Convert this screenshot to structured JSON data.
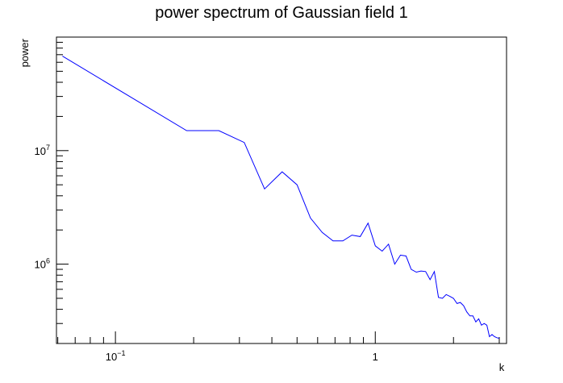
{
  "chart_data": {
    "type": "line",
    "title": "power spectrum of Gaussian field 1",
    "xlabel": "k",
    "ylabel": "power",
    "xscale": "log",
    "yscale": "log",
    "xlim": [
      0.0593,
      3.2
    ],
    "ylim": [
      200000,
      100000000
    ],
    "grid": false,
    "x_tick_labels": [
      {
        "value": 0.1,
        "base": "10",
        "exp": "−1"
      },
      {
        "value": 1,
        "base": "1",
        "exp": ""
      }
    ],
    "y_tick_labels": [
      {
        "value": 1000000,
        "base": "10",
        "exp": "6"
      },
      {
        "value": 10000000,
        "base": "10",
        "exp": "7"
      }
    ],
    "series": [
      {
        "color": "#0000ff",
        "x": [
          0.0625,
          0.188,
          0.25,
          0.313,
          0.375,
          0.438,
          0.5,
          0.563,
          0.625,
          0.688,
          0.75,
          0.813,
          0.875,
          0.938,
          1.0,
          1.063,
          1.125,
          1.188,
          1.25,
          1.313,
          1.375,
          1.438,
          1.5,
          1.563,
          1.625,
          1.688,
          1.75,
          1.813,
          1.875,
          1.938,
          2.0,
          2.063,
          2.125,
          2.188,
          2.25,
          2.313,
          2.375,
          2.438,
          2.5,
          2.563,
          2.625,
          2.688,
          2.75,
          2.813,
          2.875,
          2.938,
          3.0
        ],
        "y": [
          68000000,
          15000000,
          15000000,
          11800000,
          4600000,
          6500000,
          5000000,
          2550000,
          1900000,
          1600000,
          1600000,
          1800000,
          1750000,
          2300000,
          1450000,
          1300000,
          1500000,
          1000000,
          1200000,
          1180000,
          900000,
          850000,
          870000,
          860000,
          730000,
          860000,
          510000,
          500000,
          540000,
          520000,
          500000,
          450000,
          460000,
          430000,
          380000,
          350000,
          350000,
          310000,
          330000,
          290000,
          300000,
          290000,
          230000,
          240000,
          230000,
          225000,
          222000
        ]
      }
    ]
  }
}
